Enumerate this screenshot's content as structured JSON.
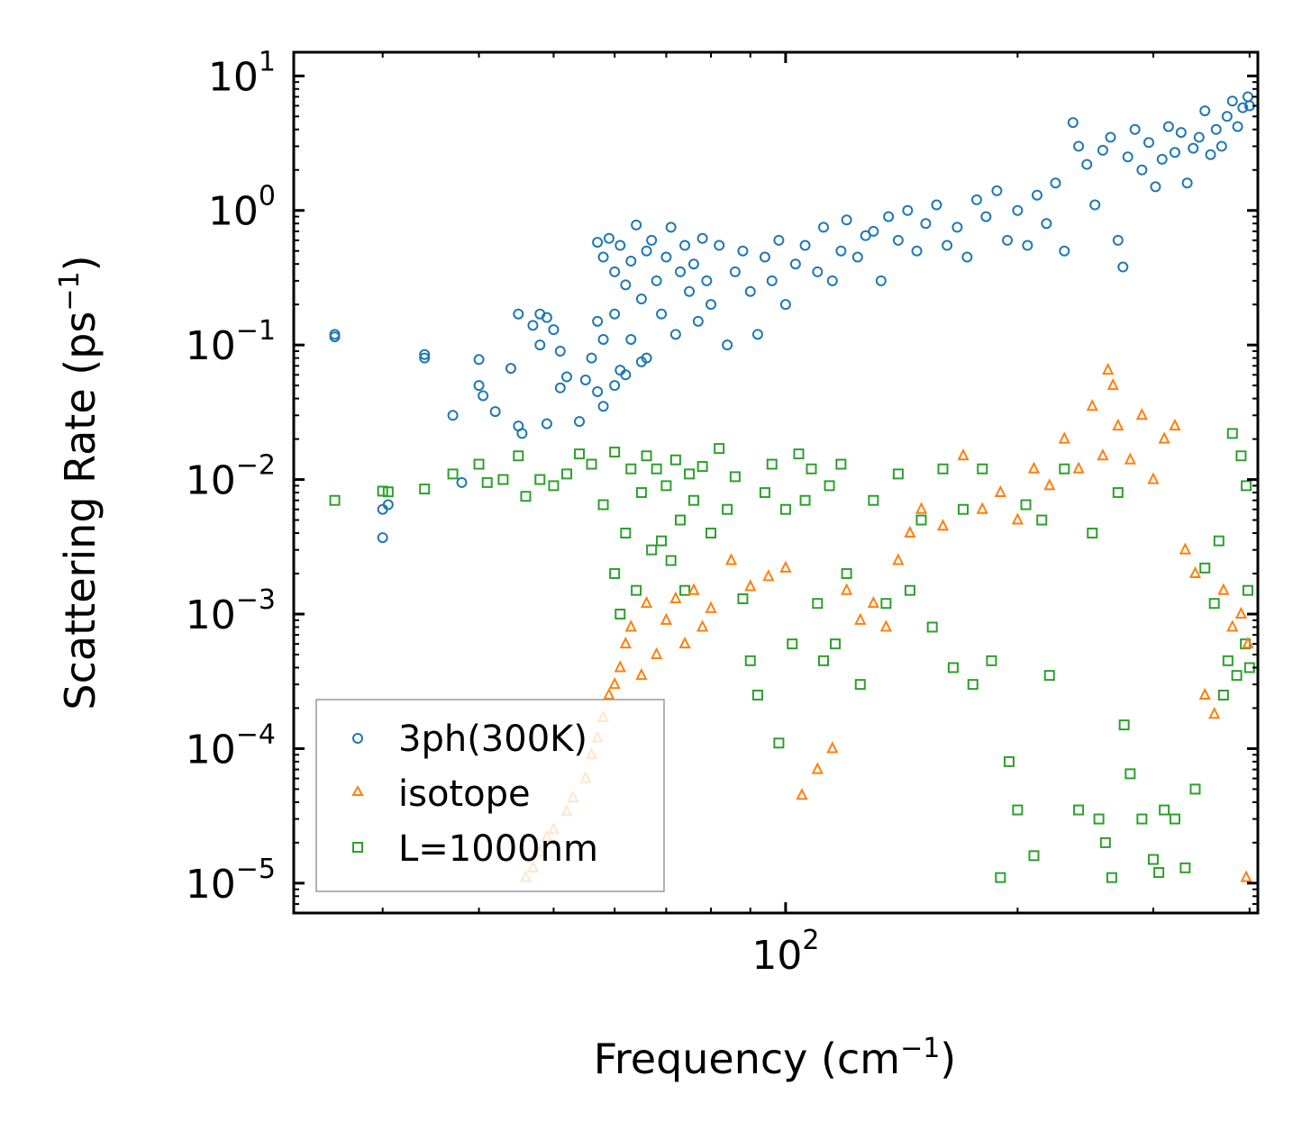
{
  "chart_data": {
    "type": "scatter",
    "title": "",
    "xlabel": "Frequency (cm",
    "xlabel_sup": "−1",
    "xlabel_suffix": ")",
    "ylabel": "Scattering Rate (ps",
    "ylabel_sup": "−1",
    "ylabel_suffix": ")",
    "xscale": "log",
    "yscale": "log",
    "xlim": [
      23,
      410
    ],
    "ylim": [
      6e-06,
      15
    ],
    "x_major_ticks": [
      {
        "value": 100,
        "base": "10",
        "exp": "2"
      }
    ],
    "y_major_ticks": [
      {
        "value": 10,
        "base": "10",
        "exp": "1"
      },
      {
        "value": 1,
        "base": "10",
        "exp": "0"
      },
      {
        "value": 0.1,
        "base": "10",
        "exp": "−1"
      },
      {
        "value": 0.01,
        "base": "10",
        "exp": "−2"
      },
      {
        "value": 0.001,
        "base": "10",
        "exp": "−3"
      },
      {
        "value": 0.0001,
        "base": "10",
        "exp": "−4"
      },
      {
        "value": 1e-05,
        "base": "10",
        "exp": "−5"
      }
    ],
    "legend_position": "bottom-left",
    "series": [
      {
        "name": "3ph(300K)",
        "marker": "circle",
        "color": "#1f77b4",
        "points": [
          [
            26,
            0.12
          ],
          [
            26,
            0.115
          ],
          [
            30,
            0.0037
          ],
          [
            30,
            0.006
          ],
          [
            30.5,
            0.0065
          ],
          [
            34,
            0.085
          ],
          [
            34,
            0.08
          ],
          [
            37,
            0.03
          ],
          [
            38,
            0.0095
          ],
          [
            40,
            0.078
          ],
          [
            40,
            0.05
          ],
          [
            40.5,
            0.042
          ],
          [
            42,
            0.032
          ],
          [
            44,
            0.067
          ],
          [
            45,
            0.17
          ],
          [
            45,
            0.025
          ],
          [
            45.5,
            0.022
          ],
          [
            47,
            0.14
          ],
          [
            48,
            0.17
          ],
          [
            48,
            0.1
          ],
          [
            49,
            0.16
          ],
          [
            49,
            0.026
          ],
          [
            50,
            0.13
          ],
          [
            51,
            0.09
          ],
          [
            51,
            0.048
          ],
          [
            52,
            0.058
          ],
          [
            54,
            0.027
          ],
          [
            55,
            0.055
          ],
          [
            56,
            0.08
          ],
          [
            57,
            0.15
          ],
          [
            57,
            0.045
          ],
          [
            58,
            0.035
          ],
          [
            58,
            0.11
          ],
          [
            60,
            0.17
          ],
          [
            60,
            0.05
          ],
          [
            61,
            0.065
          ],
          [
            62,
            0.06
          ],
          [
            63,
            0.11
          ],
          [
            65,
            0.075
          ],
          [
            66,
            0.08
          ],
          [
            57,
            0.58
          ],
          [
            58,
            0.45
          ],
          [
            59,
            0.62
          ],
          [
            60,
            0.35
          ],
          [
            61,
            0.55
          ],
          [
            62,
            0.28
          ],
          [
            63,
            0.42
          ],
          [
            64,
            0.78
          ],
          [
            65,
            0.22
          ],
          [
            66,
            0.5
          ],
          [
            67,
            0.6
          ],
          [
            68,
            0.3
          ],
          [
            69,
            0.17
          ],
          [
            70,
            0.45
          ],
          [
            71,
            0.75
          ],
          [
            72,
            0.12
          ],
          [
            73,
            0.35
          ],
          [
            74,
            0.55
          ],
          [
            75,
            0.25
          ],
          [
            76,
            0.4
          ],
          [
            77,
            0.15
          ],
          [
            78,
            0.62
          ],
          [
            79,
            0.3
          ],
          [
            80,
            0.2
          ],
          [
            82,
            0.55
          ],
          [
            84,
            0.1
          ],
          [
            86,
            0.35
          ],
          [
            88,
            0.5
          ],
          [
            90,
            0.25
          ],
          [
            92,
            0.12
          ],
          [
            94,
            0.45
          ],
          [
            96,
            0.3
          ],
          [
            98,
            0.6
          ],
          [
            100,
            0.2
          ],
          [
            103,
            0.4
          ],
          [
            106,
            0.55
          ],
          [
            110,
            0.35
          ],
          [
            112,
            0.75
          ],
          [
            115,
            0.3
          ],
          [
            118,
            0.5
          ],
          [
            120,
            0.85
          ],
          [
            124,
            0.45
          ],
          [
            127,
            0.65
          ],
          [
            130,
            0.7
          ],
          [
            133,
            0.3
          ],
          [
            136,
            0.9
          ],
          [
            140,
            0.6
          ],
          [
            144,
            1.0
          ],
          [
            148,
            0.5
          ],
          [
            152,
            0.8
          ],
          [
            157,
            1.1
          ],
          [
            162,
            0.55
          ],
          [
            167,
            0.75
          ],
          [
            172,
            0.45
          ],
          [
            177,
            1.2
          ],
          [
            182,
            0.9
          ],
          [
            188,
            1.4
          ],
          [
            194,
            0.6
          ],
          [
            200,
            1.0
          ],
          [
            206,
            0.55
          ],
          [
            212,
            1.3
          ],
          [
            218,
            0.8
          ],
          [
            224,
            1.6
          ],
          [
            230,
            0.5
          ],
          [
            236,
            4.5
          ],
          [
            240,
            3.0
          ],
          [
            246,
            2.2
          ],
          [
            252,
            1.1
          ],
          [
            258,
            2.8
          ],
          [
            264,
            3.5
          ],
          [
            270,
            0.6
          ],
          [
            274,
            0.38
          ],
          [
            278,
            2.5
          ],
          [
            284,
            4.0
          ],
          [
            290,
            2.0
          ],
          [
            296,
            3.2
          ],
          [
            302,
            1.5
          ],
          [
            308,
            2.4
          ],
          [
            314,
            4.2
          ],
          [
            320,
            2.7
          ],
          [
            326,
            3.8
          ],
          [
            332,
            1.6
          ],
          [
            338,
            2.9
          ],
          [
            344,
            3.5
          ],
          [
            350,
            5.5
          ],
          [
            356,
            2.6
          ],
          [
            362,
            4.0
          ],
          [
            368,
            3.0
          ],
          [
            374,
            5.0
          ],
          [
            380,
            6.5
          ],
          [
            386,
            4.2
          ],
          [
            392,
            5.8
          ],
          [
            398,
            7.0
          ],
          [
            400,
            6.0
          ]
        ]
      },
      {
        "name": "isotope",
        "marker": "triangle",
        "color": "#ff7f0e",
        "points": [
          [
            46,
            1.1e-05
          ],
          [
            47,
            1.3e-05
          ],
          [
            48,
            1.7e-05
          ],
          [
            49,
            2.2e-05
          ],
          [
            50,
            2.5e-05
          ],
          [
            52,
            3.4e-05
          ],
          [
            53,
            4.3e-05
          ],
          [
            55,
            6e-05
          ],
          [
            56,
            9e-05
          ],
          [
            57,
            0.00012
          ],
          [
            58,
            0.00017
          ],
          [
            59,
            0.00025
          ],
          [
            60,
            0.0003
          ],
          [
            61,
            0.0004
          ],
          [
            62,
            0.0006
          ],
          [
            63,
            0.0008
          ],
          [
            65,
            0.00035
          ],
          [
            66,
            0.0012
          ],
          [
            68,
            0.0005
          ],
          [
            70,
            0.0009
          ],
          [
            72,
            0.0013
          ],
          [
            74,
            0.0006
          ],
          [
            76,
            0.0015
          ],
          [
            78,
            0.0008
          ],
          [
            80,
            0.0011
          ],
          [
            85,
            0.0025
          ],
          [
            90,
            0.0016
          ],
          [
            95,
            0.0019
          ],
          [
            100,
            0.0022
          ],
          [
            105,
            4.5e-05
          ],
          [
            110,
            7e-05
          ],
          [
            115,
            0.0001
          ],
          [
            120,
            0.0015
          ],
          [
            125,
            0.0009
          ],
          [
            130,
            0.0012
          ],
          [
            135,
            0.0008
          ],
          [
            140,
            0.0025
          ],
          [
            145,
            0.004
          ],
          [
            150,
            0.006
          ],
          [
            160,
            0.0045
          ],
          [
            170,
            0.015
          ],
          [
            180,
            0.006
          ],
          [
            190,
            0.008
          ],
          [
            200,
            0.005
          ],
          [
            210,
            0.012
          ],
          [
            220,
            0.009
          ],
          [
            230,
            0.02
          ],
          [
            240,
            0.012
          ],
          [
            250,
            0.035
          ],
          [
            258,
            0.015
          ],
          [
            262,
            0.065
          ],
          [
            266,
            0.05
          ],
          [
            270,
            0.025
          ],
          [
            280,
            0.014
          ],
          [
            290,
            0.03
          ],
          [
            300,
            0.01
          ],
          [
            310,
            0.02
          ],
          [
            320,
            0.025
          ],
          [
            330,
            0.003
          ],
          [
            340,
            0.002
          ],
          [
            350,
            0.00025
          ],
          [
            360,
            0.00018
          ],
          [
            370,
            0.0015
          ],
          [
            380,
            0.0008
          ],
          [
            390,
            0.001
          ],
          [
            396,
            1.1e-05
          ],
          [
            398,
            0.0006
          ]
        ]
      },
      {
        "name": "L=1000nm",
        "marker": "square",
        "color": "#2ca02c",
        "points": [
          [
            26,
            0.007
          ],
          [
            30,
            0.0082
          ],
          [
            30.5,
            0.0081
          ],
          [
            34,
            0.0085
          ],
          [
            37,
            0.011
          ],
          [
            40,
            0.013
          ],
          [
            41,
            0.0095
          ],
          [
            43,
            0.01
          ],
          [
            45,
            0.015
          ],
          [
            46,
            0.0075
          ],
          [
            48,
            0.01
          ],
          [
            50,
            0.009
          ],
          [
            52,
            0.011
          ],
          [
            54,
            0.0155
          ],
          [
            56,
            0.013
          ],
          [
            58,
            0.0065
          ],
          [
            60,
            0.016
          ],
          [
            60,
            0.002
          ],
          [
            61,
            0.001
          ],
          [
            62,
            0.004
          ],
          [
            63,
            0.012
          ],
          [
            64,
            0.0015
          ],
          [
            65,
            0.008
          ],
          [
            66,
            0.015
          ],
          [
            67,
            0.003
          ],
          [
            68,
            0.012
          ],
          [
            69,
            0.0035
          ],
          [
            70,
            0.009
          ],
          [
            71,
            0.0025
          ],
          [
            72,
            0.014
          ],
          [
            73,
            0.005
          ],
          [
            74,
            0.0015
          ],
          [
            75,
            0.011
          ],
          [
            76,
            0.007
          ],
          [
            78,
            0.0125
          ],
          [
            80,
            0.004
          ],
          [
            82,
            0.017
          ],
          [
            84,
            0.006
          ],
          [
            86,
            0.0105
          ],
          [
            88,
            0.0013
          ],
          [
            90,
            0.00045
          ],
          [
            92,
            0.00025
          ],
          [
            94,
            0.008
          ],
          [
            96,
            0.013
          ],
          [
            98,
            0.00011
          ],
          [
            100,
            0.006
          ],
          [
            102,
            0.0006
          ],
          [
            104,
            0.0155
          ],
          [
            106,
            0.007
          ],
          [
            108,
            0.012
          ],
          [
            110,
            0.0012
          ],
          [
            112,
            0.00045
          ],
          [
            114,
            0.009
          ],
          [
            116,
            0.0006
          ],
          [
            118,
            0.013
          ],
          [
            120,
            0.002
          ],
          [
            125,
            0.0003
          ],
          [
            130,
            0.007
          ],
          [
            135,
            0.0012
          ],
          [
            140,
            0.011
          ],
          [
            145,
            0.0015
          ],
          [
            150,
            0.005
          ],
          [
            155,
            0.0008
          ],
          [
            160,
            0.012
          ],
          [
            165,
            0.0004
          ],
          [
            170,
            0.006
          ],
          [
            175,
            0.0003
          ],
          [
            180,
            0.012
          ],
          [
            185,
            0.00045
          ],
          [
            190,
            1.1e-05
          ],
          [
            195,
            8e-05
          ],
          [
            200,
            3.5e-05
          ],
          [
            205,
            0.0065
          ],
          [
            210,
            1.6e-05
          ],
          [
            215,
            0.005
          ],
          [
            220,
            0.00035
          ],
          [
            230,
            0.012
          ],
          [
            240,
            3.5e-05
          ],
          [
            250,
            0.004
          ],
          [
            255,
            3e-05
          ],
          [
            260,
            2e-05
          ],
          [
            265,
            1.1e-05
          ],
          [
            270,
            0.008
          ],
          [
            275,
            0.00015
          ],
          [
            280,
            6.5e-05
          ],
          [
            290,
            3e-05
          ],
          [
            300,
            1.5e-05
          ],
          [
            305,
            1.2e-05
          ],
          [
            310,
            3.5e-05
          ],
          [
            320,
            3e-05
          ],
          [
            330,
            1.3e-05
          ],
          [
            340,
            5e-05
          ],
          [
            350,
            0.0022
          ],
          [
            360,
            0.0012
          ],
          [
            365,
            0.0035
          ],
          [
            370,
            0.00025
          ],
          [
            375,
            0.00045
          ],
          [
            380,
            0.022
          ],
          [
            385,
            0.00035
          ],
          [
            390,
            0.015
          ],
          [
            395,
            0.0006
          ],
          [
            400,
            0.0004
          ],
          [
            396,
            0.009
          ],
          [
            398,
            0.0015
          ]
        ]
      }
    ]
  }
}
